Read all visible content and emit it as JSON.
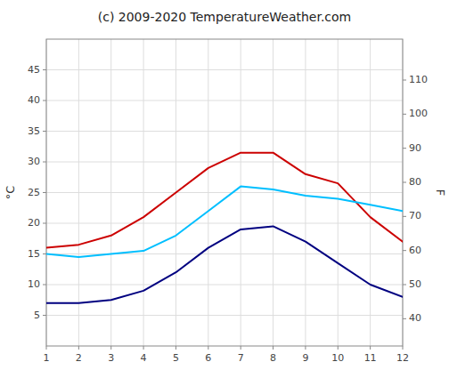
{
  "chart_data": {
    "type": "line",
    "title": "(c) 2009-2020 TemperatureWeather.com",
    "ylabel": "°C",
    "y2label": "F",
    "x": [
      1,
      2,
      3,
      4,
      5,
      6,
      7,
      8,
      9,
      10,
      11,
      12
    ],
    "series": [
      {
        "color": "#cc0000",
        "values": [
          16,
          16.5,
          18,
          21,
          25,
          29,
          31.5,
          31.5,
          28,
          26.5,
          21,
          17
        ]
      },
      {
        "color": "#000080",
        "values": [
          7,
          7,
          7.5,
          9,
          12,
          16,
          19,
          19.5,
          17,
          13.5,
          10,
          8
        ]
      },
      {
        "color": "#00bfff",
        "values": [
          15,
          14.5,
          15,
          15.5,
          18,
          22,
          26,
          25.5,
          24.5,
          24,
          23,
          22
        ]
      }
    ],
    "xlim": [
      1,
      12
    ],
    "xticks": [
      1,
      2,
      3,
      4,
      5,
      6,
      7,
      8,
      9,
      10,
      11,
      12
    ],
    "ylim": [
      0,
      50
    ],
    "yticks": [
      5,
      10,
      15,
      20,
      25,
      30,
      35,
      40,
      45
    ],
    "y2lim": [
      32,
      122
    ],
    "y2ticks": [
      40,
      50,
      60,
      70,
      80,
      90,
      100,
      110
    ],
    "grid": true
  }
}
